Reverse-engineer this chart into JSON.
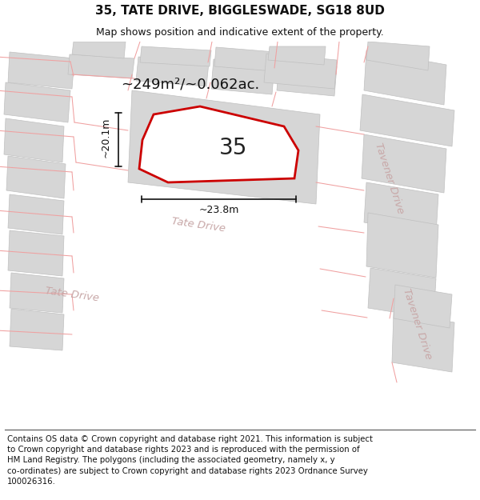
{
  "title": "35, TATE DRIVE, BIGGLESWADE, SG18 8UD",
  "subtitle": "Map shows position and indicative extent of the property.",
  "footer_text": "Contains OS data © Crown copyright and database right 2021. This information is subject\nto Crown copyright and database rights 2023 and is reproduced with the permission of\nHM Land Registry. The polygons (including the associated geometry, namely x, y\nco-ordinates) are subject to Crown copyright and database rights 2023 Ordnance Survey\n100026316.",
  "area_label": "~249m²/~0.062ac.",
  "width_label": "~23.8m",
  "height_label": "~20.1m",
  "plot_number": "35",
  "map_bg": "#f7f2f2",
  "road_color": "#ffffff",
  "building_fill": "#d6d6d6",
  "building_edge": "#c0c0c0",
  "plot_edge": "#cc0000",
  "pink": "#f0a0a0",
  "road_label_color": "#c8a8a8",
  "dim_color": "#111111",
  "title_fs": 11,
  "subtitle_fs": 9,
  "footer_fs": 7.3,
  "area_label_fs": 13,
  "dim_label_fs": 9,
  "number_fs": 20
}
